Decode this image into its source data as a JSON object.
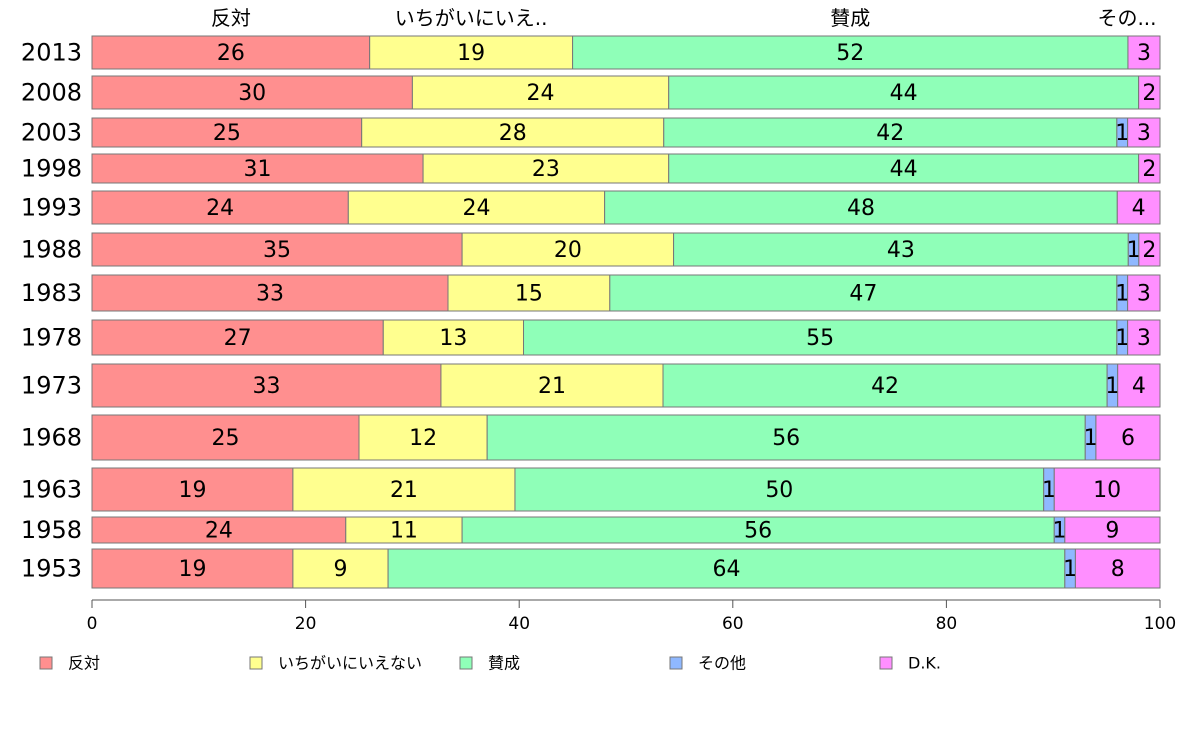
{
  "chart_data": {
    "type": "bar",
    "orientation": "horizontal",
    "stacked": true,
    "percent": true,
    "categories": [
      "2013",
      "2008",
      "2003",
      "1998",
      "1993",
      "1988",
      "1983",
      "1978",
      "1973",
      "1968",
      "1963",
      "1958",
      "1953"
    ],
    "series": [
      {
        "name": "反対",
        "color": "#ff8f8f",
        "values": [
          26,
          30,
          25,
          31,
          24,
          35,
          33,
          27,
          33,
          25,
          19,
          24,
          19
        ]
      },
      {
        "name": "いちがいにいえない",
        "color": "#ffff8f",
        "values": [
          19,
          24,
          28,
          23,
          24,
          20,
          15,
          13,
          21,
          12,
          21,
          11,
          9
        ]
      },
      {
        "name": "賛成",
        "color": "#8fffb8",
        "values": [
          52,
          44,
          42,
          44,
          48,
          43,
          47,
          55,
          42,
          56,
          50,
          56,
          64
        ]
      },
      {
        "name": "その他",
        "color": "#8fb8ff",
        "values": [
          0,
          0,
          1,
          0,
          0,
          1,
          1,
          1,
          1,
          1,
          1,
          1,
          1
        ]
      },
      {
        "name": "D.K.",
        "color": "#ff8fff",
        "values": [
          3,
          2,
          3,
          2,
          4,
          2,
          3,
          3,
          4,
          6,
          10,
          9,
          8
        ]
      }
    ],
    "header_labels": [
      "反対",
      "いちがいにいえ..",
      "賛成",
      "その..."
    ],
    "x_ticks": [
      "0",
      "20",
      "40",
      "60",
      "80",
      "100"
    ],
    "xlim": [
      0,
      100
    ],
    "grid": false,
    "legend_position": "bottom"
  }
}
